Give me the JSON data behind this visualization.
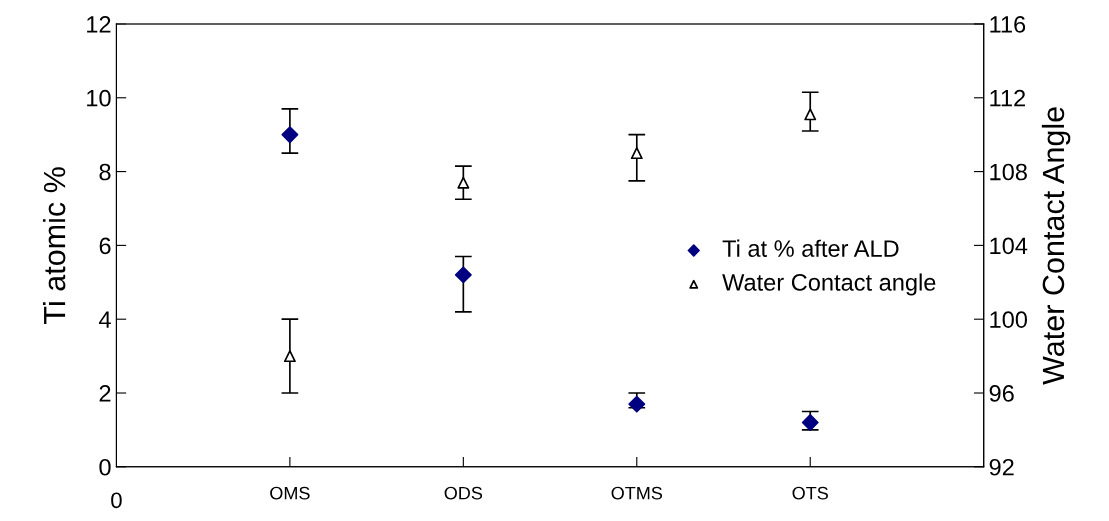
{
  "chart_data": {
    "type": "scatter",
    "ylabel": "Ti atomic %",
    "y2label": "Water Contact Angle",
    "categories": [
      "OMS",
      "ODS",
      "OTMS",
      "OTS"
    ],
    "annotations": [
      "0"
    ],
    "ylim": [
      0,
      12
    ],
    "yticks": [
      0,
      2,
      4,
      6,
      8,
      10,
      12
    ],
    "y2lim": [
      92,
      116
    ],
    "y2ticks": [
      92,
      96,
      100,
      104,
      108,
      112,
      116
    ],
    "series": [
      {
        "name": "Ti at % after ALD",
        "color": "#000080",
        "marker": "diamond",
        "values": [
          9.0,
          5.2,
          1.7,
          1.2
        ],
        "errors": [
          [
            8.5,
            9.7
          ],
          [
            4.2,
            5.7
          ],
          [
            1.6,
            2.0
          ],
          [
            1.0,
            1.5
          ]
        ]
      },
      {
        "name": "Water Contact angle",
        "color": "#000000",
        "marker": "triangle",
        "axis": "y2",
        "values": [
          98,
          107.4,
          109,
          111.1
        ],
        "errors": [
          [
            96,
            100
          ],
          [
            106.5,
            108.3
          ],
          [
            107.5,
            110
          ],
          [
            110.2,
            112.3
          ]
        ]
      }
    ],
    "grid": false,
    "legend": "right"
  }
}
